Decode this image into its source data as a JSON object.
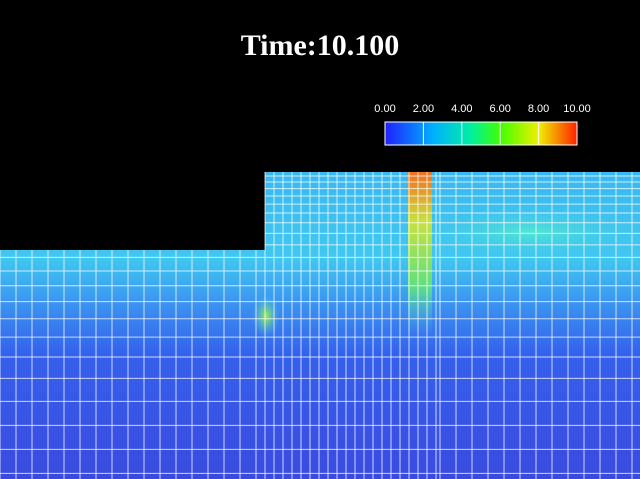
{
  "title": "Time:10.100",
  "colorbar": {
    "range": [
      0,
      10
    ],
    "ticks": [
      {
        "value": 0,
        "label": "0.00"
      },
      {
        "value": 2,
        "label": "2.00"
      },
      {
        "value": 4,
        "label": "4.00"
      },
      {
        "value": 6,
        "label": "6.00"
      },
      {
        "value": 8,
        "label": "8.00"
      },
      {
        "value": 10,
        "label": "10.00"
      }
    ]
  }
}
